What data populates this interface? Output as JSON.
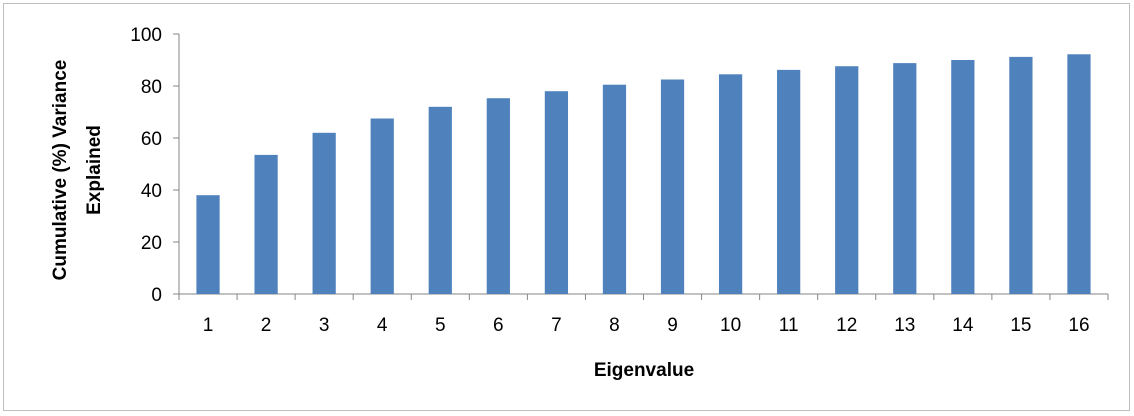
{
  "chart_data": {
    "type": "bar",
    "title": "",
    "xlabel": "Eigenvalue",
    "ylabel_lines": [
      "Cumulative (%) Variance",
      "Explained"
    ],
    "categories": [
      "1",
      "2",
      "3",
      "4",
      "5",
      "6",
      "7",
      "8",
      "9",
      "10",
      "11",
      "12",
      "13",
      "14",
      "15",
      "16"
    ],
    "values": [
      38,
      53.5,
      62,
      67.5,
      72,
      75.3,
      78,
      80.5,
      82.5,
      84.5,
      86.2,
      87.6,
      88.8,
      90,
      91.2,
      92.2
    ],
    "ylim": [
      0,
      100
    ],
    "yticks": [
      0,
      20,
      40,
      60,
      80,
      100
    ],
    "grid": false,
    "legend": "none",
    "bar_color": "#4f81bd",
    "axis_color": "#868686"
  }
}
